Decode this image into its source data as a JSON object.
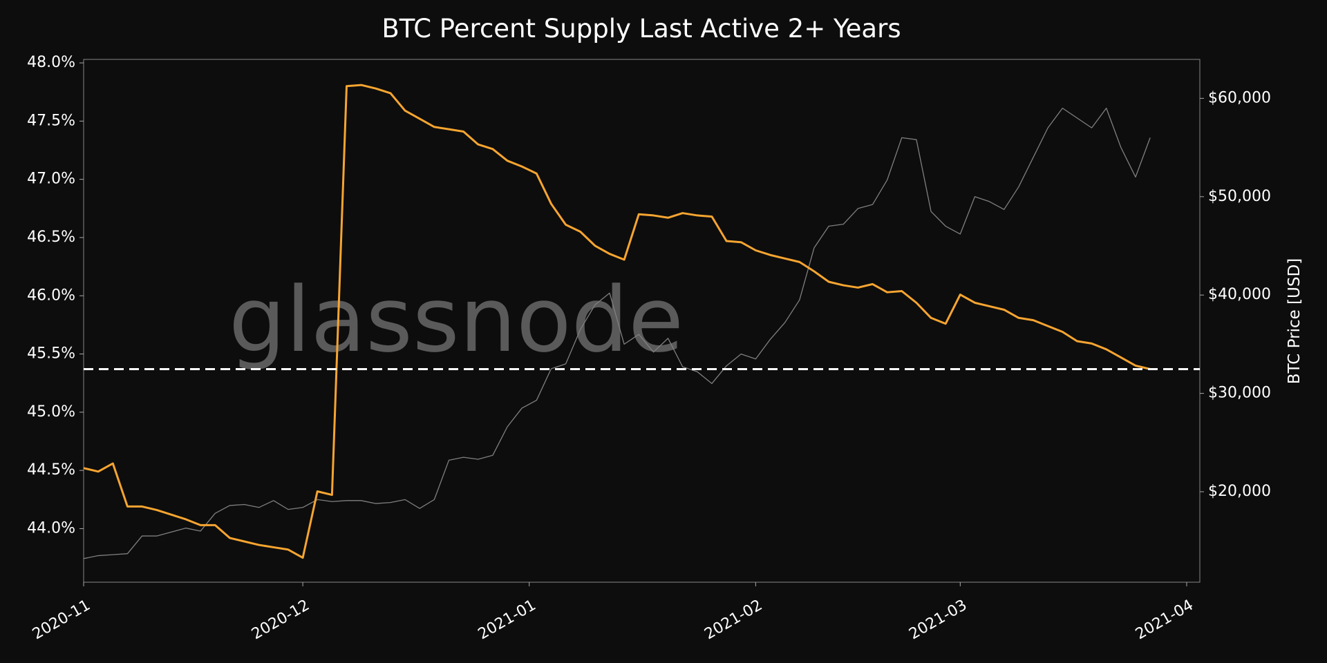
{
  "chart_data": {
    "type": "line",
    "title": "BTC Percent Supply Last Active 2+ Years",
    "y2label": "BTC Price [USD]",
    "watermark": "glassnode",
    "x": [
      0,
      2,
      4,
      6,
      8,
      10,
      12,
      14,
      16,
      18,
      20,
      22,
      24,
      26,
      28,
      30,
      32,
      34,
      36,
      38,
      40,
      42,
      44,
      46,
      48,
      50,
      52,
      54,
      56,
      58,
      60,
      62,
      64,
      66,
      68,
      70,
      72,
      74,
      76,
      78,
      80,
      82,
      84,
      86,
      88,
      90,
      92,
      94,
      96,
      98,
      100,
      102,
      104,
      106,
      108,
      110,
      112,
      114,
      116,
      118,
      120,
      122,
      124,
      126,
      128,
      130,
      132,
      134,
      136,
      138,
      140,
      142,
      144,
      146
    ],
    "xlim": [
      0,
      152.8
    ],
    "xticks": [
      {
        "value": 0,
        "label": "2020-11"
      },
      {
        "value": 30,
        "label": "2020-12"
      },
      {
        "value": 61,
        "label": "2021-01"
      },
      {
        "value": 92,
        "label": "2021-02"
      },
      {
        "value": 120,
        "label": "2021-03"
      },
      {
        "value": 151,
        "label": "2021-04"
      }
    ],
    "ylim": [
      43.54,
      48.03
    ],
    "yticks": [
      {
        "value": 44,
        "label": "44.0%"
      },
      {
        "value": 44.5,
        "label": "44.5%"
      },
      {
        "value": 45,
        "label": "45.0%"
      },
      {
        "value": 45.5,
        "label": "45.5%"
      },
      {
        "value": 46,
        "label": "46.0%"
      },
      {
        "value": 46.5,
        "label": "46.5%"
      },
      {
        "value": 47,
        "label": "47.0%"
      },
      {
        "value": 47.5,
        "label": "47.5%"
      },
      {
        "value": 48,
        "label": "48.0%"
      }
    ],
    "y2lim": [
      10800,
      63960
    ],
    "y2ticks": [
      {
        "value": 20000,
        "label": "$20,000"
      },
      {
        "value": 30000,
        "label": "$30,000"
      },
      {
        "value": 40000,
        "label": "$40,000"
      },
      {
        "value": 50000,
        "label": "$50,000"
      },
      {
        "value": 60000,
        "label": "$60,000"
      }
    ],
    "reference_line": {
      "value": 45.37,
      "color": "#ffffff"
    },
    "series": [
      {
        "color": "#808080",
        "axis": "y2",
        "values": [
          13200,
          13500,
          13600,
          13700,
          15500,
          15500,
          15900,
          16300,
          16000,
          17800,
          18600,
          18700,
          18400,
          19100,
          18200,
          18400,
          19200,
          19000,
          19100,
          19100,
          18800,
          18900,
          19200,
          18300,
          19200,
          23200,
          23500,
          23300,
          23700,
          26600,
          28500,
          29300,
          32500,
          33000,
          36500,
          39000,
          40200,
          35000,
          36000,
          34200,
          35600,
          32700,
          32200,
          31000,
          32800,
          34000,
          33500,
          35500,
          37200,
          39500,
          44800,
          47000,
          47200,
          48800,
          49200,
          51700,
          56000,
          55800,
          48500,
          47000,
          46200,
          50000,
          49500,
          48700,
          51000,
          54000,
          57000,
          59000,
          58000,
          57000,
          59000,
          55000,
          52000,
          56000
        ]
      },
      {
        "color": "#f7a531",
        "values": [
          44.52,
          44.49,
          44.56,
          44.19,
          44.19,
          44.16,
          44.12,
          44.08,
          44.03,
          44.03,
          43.92,
          43.89,
          43.86,
          43.84,
          43.82,
          43.75,
          44.32,
          44.29,
          47.8,
          47.81,
          47.78,
          47.74,
          47.59,
          47.52,
          47.45,
          47.43,
          47.41,
          47.3,
          47.26,
          47.16,
          47.11,
          47.05,
          46.79,
          46.61,
          46.55,
          46.43,
          46.36,
          46.31,
          46.7,
          46.69,
          46.67,
          46.71,
          46.69,
          46.68,
          46.47,
          46.46,
          46.39,
          46.35,
          46.32,
          46.29,
          46.21,
          46.12,
          46.09,
          46.07,
          46.1,
          46.03,
          46.04,
          45.94,
          45.81,
          45.76,
          46.01,
          45.94,
          45.91,
          45.88,
          45.81,
          45.79,
          45.74,
          45.69,
          45.61,
          45.59,
          45.54,
          45.47,
          45.4,
          45.37
        ]
      }
    ]
  }
}
